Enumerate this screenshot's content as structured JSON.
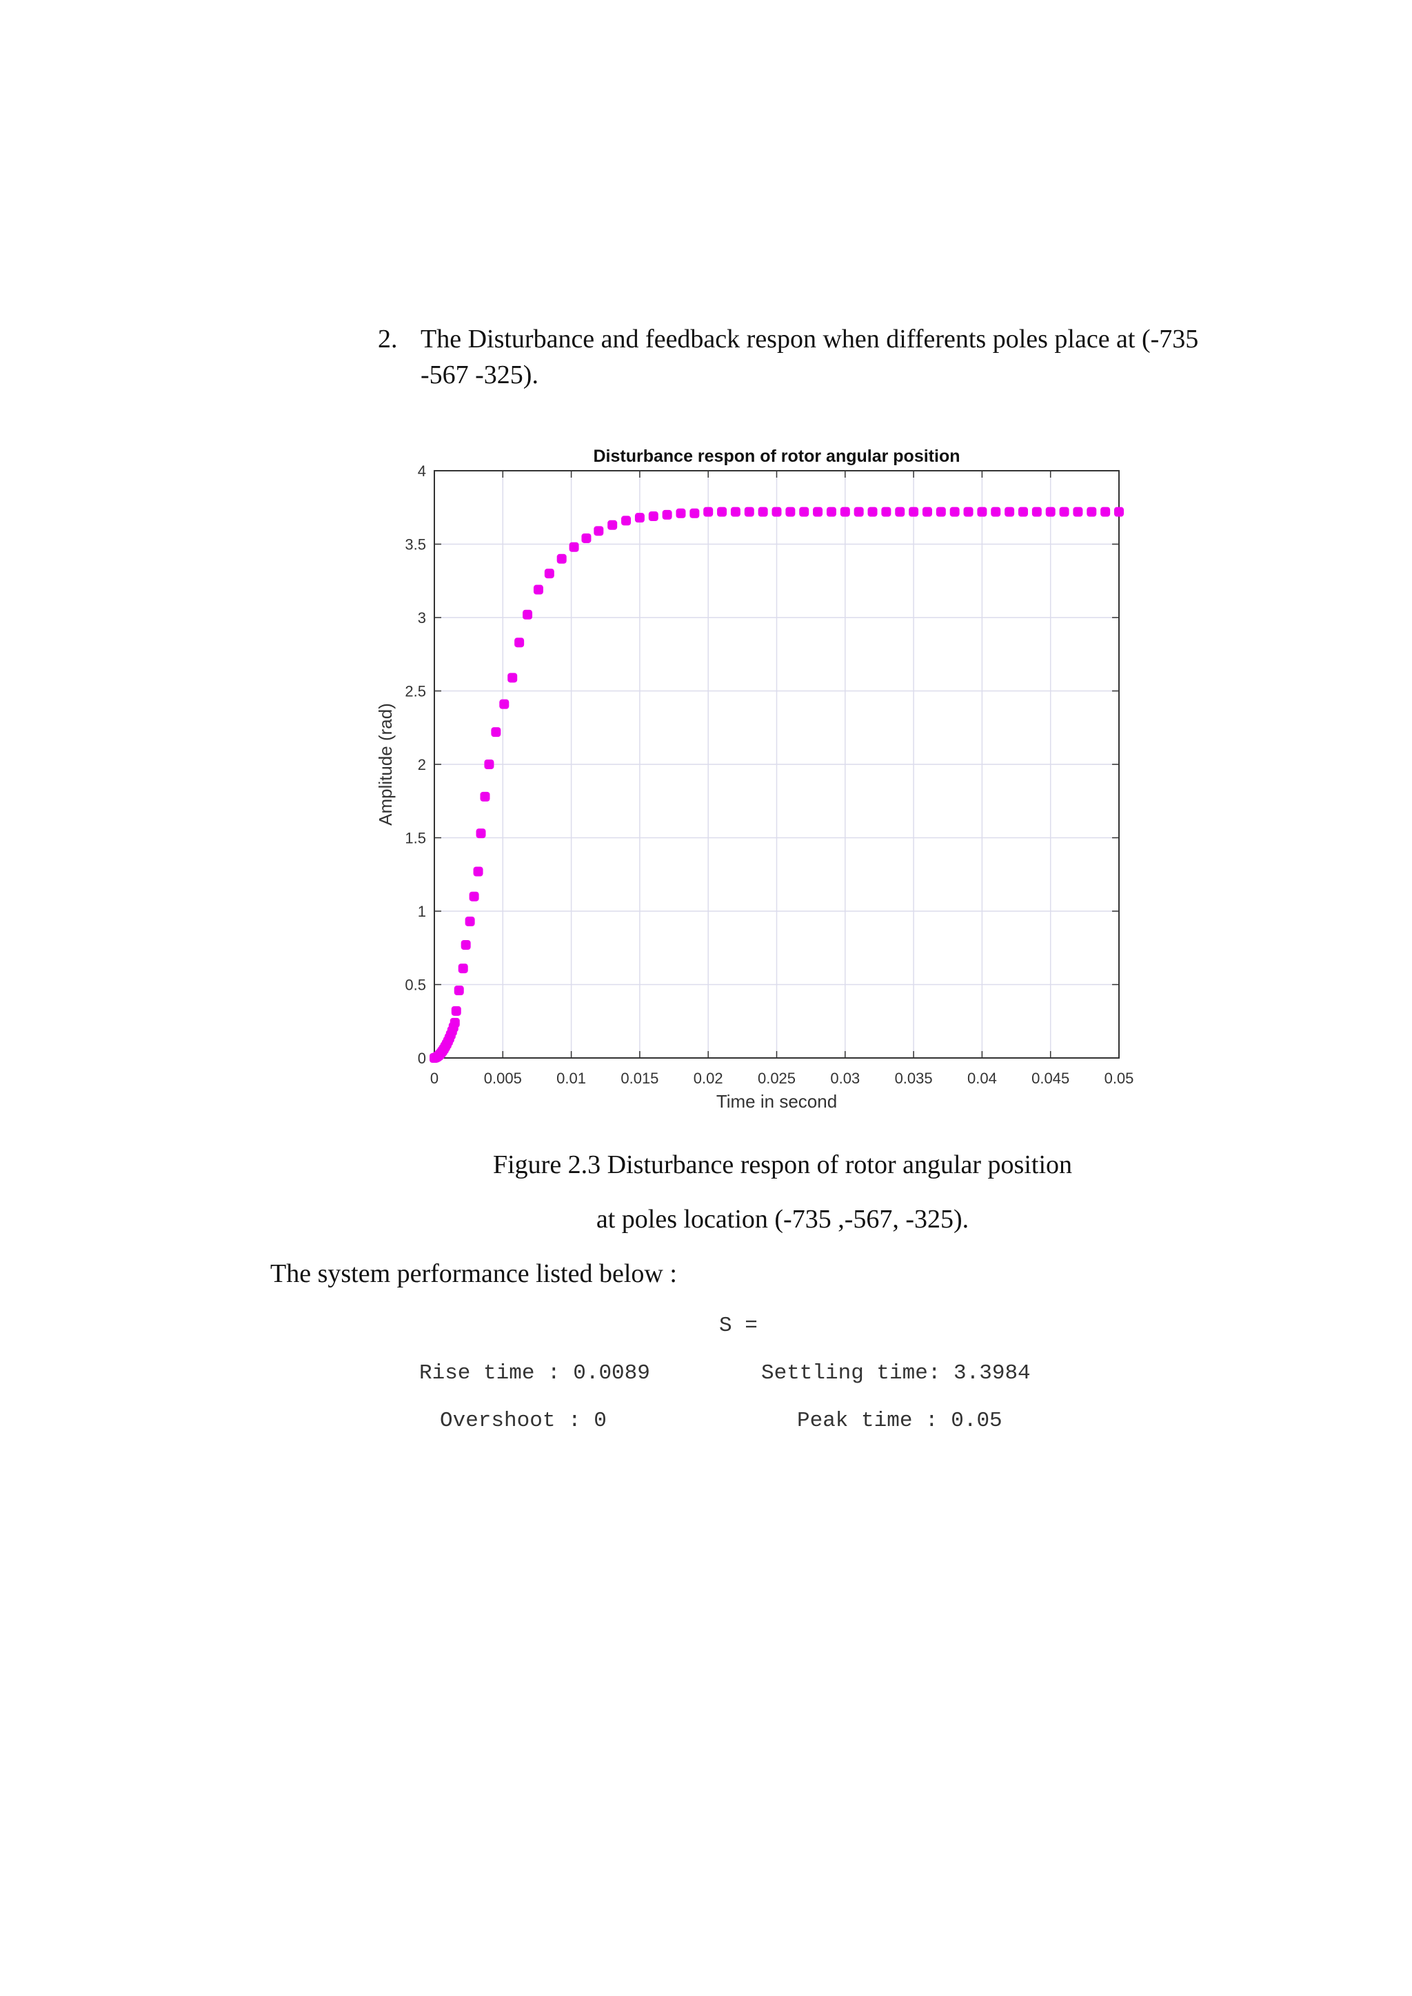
{
  "heading": {
    "number": "2.",
    "text": "The Disturbance and feedback respon when differents poles place at (-735 -567 -325)."
  },
  "figure": {
    "caption_line1": "Figure 2.3 Disturbance respon of rotor angular position",
    "caption_line2": "at poles location (-735 ,-567, -325)."
  },
  "performance": {
    "intro": "The system performance listed below :",
    "s_label": "S =",
    "rise_time": "Rise time : 0.0089",
    "settling_time": "Settling time: 3.3984",
    "overshoot": "Overshoot : 0",
    "peak_time": "Peak time : 0.05"
  },
  "chart_data": {
    "type": "scatter",
    "title": "Disturbance respon of rotor angular position",
    "xlabel": "Time in second",
    "ylabel": "Amplitude (rad)",
    "xlim": [
      0,
      0.05
    ],
    "ylim": [
      0,
      4
    ],
    "xticks": [
      "0",
      "0.005",
      "0.01",
      "0.015",
      "0.02",
      "0.025",
      "0.03",
      "0.035",
      "0.04",
      "0.045",
      "0.05"
    ],
    "yticks": [
      "0",
      "0.5",
      "1",
      "1.5",
      "2",
      "2.5",
      "3",
      "3.5",
      "4"
    ],
    "grid": true,
    "marker_color": "#ee00ee",
    "series": [
      {
        "x": [
          0,
          0.0001,
          0.0002,
          0.0003,
          0.0004,
          0.0005,
          0.0006,
          0.0007,
          0.0008,
          0.0009,
          0.001,
          0.0011,
          0.0012,
          0.0013,
          0.0014,
          0.0015,
          0.0016,
          0.0018,
          0.0021,
          0.0023,
          0.0026,
          0.0029,
          0.0032,
          0.0034,
          0.0037,
          0.004,
          0.0045,
          0.0051,
          0.0057,
          0.0062,
          0.0068,
          0.0076,
          0.0084,
          0.0093,
          0.0102,
          0.0111,
          0.012,
          0.013,
          0.014,
          0.015,
          0.016,
          0.017,
          0.018,
          0.019,
          0.02,
          0.021,
          0.022,
          0.023,
          0.024,
          0.025,
          0.026,
          0.027,
          0.028,
          0.029,
          0.03,
          0.031,
          0.032,
          0.033,
          0.034,
          0.035,
          0.036,
          0.037,
          0.038,
          0.039,
          0.04,
          0.041,
          0.042,
          0.043,
          0.044,
          0.045,
          0.046,
          0.047,
          0.048,
          0.049,
          0.05
        ],
        "y": [
          0,
          0.003,
          0.008,
          0.015,
          0.024,
          0.035,
          0.048,
          0.062,
          0.078,
          0.095,
          0.114,
          0.135,
          0.158,
          0.183,
          0.21,
          0.24,
          0.32,
          0.46,
          0.61,
          0.77,
          0.93,
          1.1,
          1.27,
          1.53,
          1.78,
          2.0,
          2.22,
          2.41,
          2.59,
          2.83,
          3.02,
          3.19,
          3.3,
          3.4,
          3.48,
          3.54,
          3.59,
          3.63,
          3.66,
          3.68,
          3.69,
          3.7,
          3.71,
          3.71,
          3.72,
          3.72,
          3.72,
          3.72,
          3.72,
          3.72,
          3.72,
          3.72,
          3.72,
          3.72,
          3.72,
          3.72,
          3.72,
          3.72,
          3.72,
          3.72,
          3.72,
          3.72,
          3.72,
          3.72,
          3.72,
          3.72,
          3.72,
          3.72,
          3.72,
          3.72,
          3.72,
          3.72,
          3.72,
          3.72,
          3.72
        ]
      }
    ]
  }
}
